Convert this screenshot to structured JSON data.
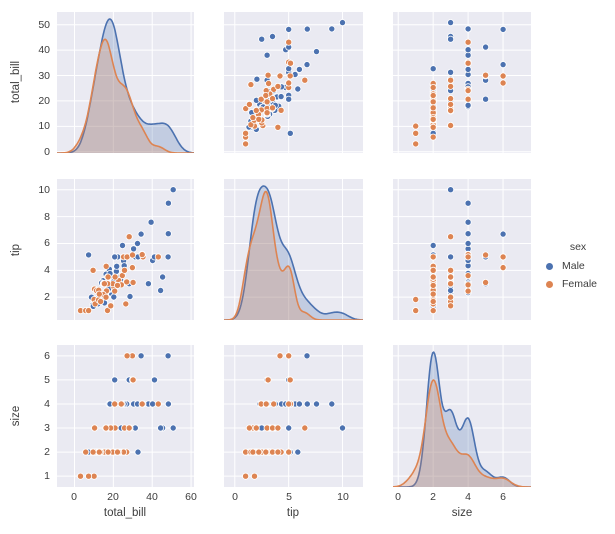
{
  "figure": {
    "background": "#ffffff",
    "panel_background": "#eaeaf2",
    "grid_color": "#ffffff"
  },
  "legend": {
    "title": "sex",
    "items": [
      {
        "label": "Male",
        "color": "#4c72b0"
      },
      {
        "label": "Female",
        "color": "#dd8452"
      }
    ]
  },
  "chart_data": {
    "type": "scatter",
    "subtype": "pairplot-with-kde-diagonal",
    "variables": [
      "total_bill",
      "tip",
      "size"
    ],
    "xlabels": [
      "total_bill",
      "tip",
      "size"
    ],
    "ylabels": [
      "total_bill",
      "tip",
      "size"
    ],
    "hue": {
      "name": "sex",
      "classes": [
        "Male",
        "Female"
      ],
      "colors": {
        "Male": "#4c72b0",
        "Female": "#dd8452"
      }
    },
    "axes": {
      "total_bill": {
        "x_ticks": [
          0,
          20,
          40,
          60
        ],
        "x_lim": [
          -9,
          61.5
        ],
        "y_ticks": [
          0,
          10,
          20,
          30,
          40,
          50
        ],
        "y_lim": [
          -0.5,
          55
        ]
      },
      "tip": {
        "x_ticks": [
          0,
          5,
          10
        ],
        "x_lim": [
          -1,
          11.9
        ],
        "y_ticks": [
          2,
          4,
          6,
          8,
          10
        ],
        "y_lim": [
          0.3,
          10.8
        ]
      },
      "size": {
        "x_ticks": [
          0,
          2,
          4,
          6
        ],
        "x_lim": [
          -0.3,
          7.6
        ],
        "y_ticks": [
          1,
          2,
          3,
          4,
          5,
          6
        ],
        "y_lim": [
          0.55,
          6.45
        ]
      }
    },
    "records_format": [
      "total_bill",
      "tip",
      "size",
      "sex"
    ],
    "records": [
      [
        10.34,
        1.66,
        3,
        "Male"
      ],
      [
        21.01,
        3.5,
        3,
        "Male"
      ],
      [
        23.68,
        3.31,
        2,
        "Male"
      ],
      [
        25.29,
        4.71,
        4,
        "Male"
      ],
      [
        8.77,
        2.0,
        2,
        "Male"
      ],
      [
        26.88,
        3.12,
        4,
        "Male"
      ],
      [
        15.04,
        1.96,
        2,
        "Male"
      ],
      [
        14.78,
        3.23,
        2,
        "Male"
      ],
      [
        10.27,
        1.71,
        2,
        "Male"
      ],
      [
        15.42,
        1.57,
        2,
        "Male"
      ],
      [
        18.43,
        3.0,
        4,
        "Male"
      ],
      [
        21.58,
        3.92,
        2,
        "Male"
      ],
      [
        16.29,
        3.71,
        3,
        "Male"
      ],
      [
        20.65,
        3.35,
        3,
        "Male"
      ],
      [
        17.92,
        4.08,
        2,
        "Male"
      ],
      [
        39.42,
        7.58,
        4,
        "Male"
      ],
      [
        19.82,
        3.18,
        2,
        "Male"
      ],
      [
        17.81,
        2.34,
        4,
        "Male"
      ],
      [
        13.37,
        2.0,
        2,
        "Male"
      ],
      [
        12.69,
        2.0,
        2,
        "Male"
      ],
      [
        21.7,
        4.3,
        2,
        "Male"
      ],
      [
        9.55,
        1.45,
        2,
        "Male"
      ],
      [
        18.35,
        2.5,
        4,
        "Male"
      ],
      [
        24.06,
        3.6,
        3,
        "Male"
      ],
      [
        16.31,
        2.0,
        3,
        "Male"
      ],
      [
        18.69,
        2.31,
        3,
        "Male"
      ],
      [
        31.27,
        5.0,
        3,
        "Male"
      ],
      [
        16.04,
        2.24,
        3,
        "Male"
      ],
      [
        17.46,
        2.54,
        2,
        "Male"
      ],
      [
        13.94,
        3.06,
        2,
        "Male"
      ],
      [
        9.68,
        1.32,
        2,
        "Male"
      ],
      [
        30.4,
        5.6,
        4,
        "Male"
      ],
      [
        22.23,
        5.0,
        2,
        "Male"
      ],
      [
        32.4,
        6.0,
        4,
        "Male"
      ],
      [
        28.55,
        2.05,
        3,
        "Male"
      ],
      [
        18.04,
        3.0,
        2,
        "Male"
      ],
      [
        12.54,
        2.5,
        2,
        "Male"
      ],
      [
        25.56,
        4.34,
        4,
        "Male"
      ],
      [
        19.49,
        3.51,
        2,
        "Male"
      ],
      [
        38.01,
        3.0,
        4,
        "Male"
      ],
      [
        11.24,
        1.76,
        2,
        "Male"
      ],
      [
        48.27,
        6.73,
        4,
        "Male"
      ],
      [
        20.29,
        3.21,
        2,
        "Male"
      ],
      [
        18.29,
        3.76,
        4,
        "Male"
      ],
      [
        17.59,
        2.64,
        3,
        "Male"
      ],
      [
        20.08,
        3.15,
        3,
        "Male"
      ],
      [
        20.23,
        2.01,
        2,
        "Male"
      ],
      [
        15.01,
        2.09,
        2,
        "Male"
      ],
      [
        50.81,
        10.0,
        3,
        "Male"
      ],
      [
        45.35,
        3.5,
        3,
        "Male"
      ],
      [
        44.3,
        2.5,
        3,
        "Male"
      ],
      [
        40.17,
        4.73,
        4,
        "Male"
      ],
      [
        48.33,
        9.0,
        4,
        "Male"
      ],
      [
        41.19,
        5.0,
        5,
        "Male"
      ],
      [
        20.69,
        5.0,
        5,
        "Male"
      ],
      [
        28.15,
        3.0,
        5,
        "Male"
      ],
      [
        34.3,
        6.7,
        6,
        "Male"
      ],
      [
        48.17,
        5.0,
        6,
        "Male"
      ],
      [
        7.25,
        5.15,
        2,
        "Male"
      ],
      [
        24.71,
        5.85,
        2,
        "Male"
      ],
      [
        32.68,
        5.0,
        2,
        "Male"
      ],
      [
        12.03,
        1.5,
        2,
        "Male"
      ],
      [
        16.99,
        1.01,
        2,
        "Female"
      ],
      [
        24.59,
        3.61,
        4,
        "Female"
      ],
      [
        35.26,
        5.0,
        4,
        "Female"
      ],
      [
        14.83,
        3.02,
        2,
        "Female"
      ],
      [
        10.33,
        1.67,
        3,
        "Female"
      ],
      [
        16.97,
        3.5,
        3,
        "Female"
      ],
      [
        20.29,
        2.75,
        2,
        "Female"
      ],
      [
        15.77,
        2.23,
        2,
        "Female"
      ],
      [
        19.65,
        3.0,
        2,
        "Female"
      ],
      [
        15.06,
        3.0,
        2,
        "Female"
      ],
      [
        20.69,
        2.45,
        4,
        "Female"
      ],
      [
        16.93,
        3.07,
        3,
        "Female"
      ],
      [
        10.29,
        2.6,
        2,
        "Female"
      ],
      [
        34.81,
        5.2,
        4,
        "Female"
      ],
      [
        26.41,
        1.5,
        2,
        "Female"
      ],
      [
        16.45,
        2.47,
        2,
        "Female"
      ],
      [
        3.07,
        1.0,
        1,
        "Female"
      ],
      [
        17.07,
        3.0,
        3,
        "Female"
      ],
      [
        26.86,
        3.14,
        2,
        "Female"
      ],
      [
        25.28,
        5.0,
        2,
        "Female"
      ],
      [
        14.73,
        2.2,
        2,
        "Female"
      ],
      [
        10.07,
        1.83,
        1,
        "Female"
      ],
      [
        34.83,
        5.17,
        4,
        "Female"
      ],
      [
        5.75,
        1.0,
        2,
        "Female"
      ],
      [
        16.32,
        4.3,
        2,
        "Female"
      ],
      [
        22.75,
        3.25,
        2,
        "Female"
      ],
      [
        11.35,
        2.5,
        2,
        "Female"
      ],
      [
        15.38,
        3.0,
        2,
        "Female"
      ],
      [
        43.11,
        5.0,
        4,
        "Female"
      ],
      [
        20.9,
        3.5,
        3,
        "Female"
      ],
      [
        25.71,
        4.0,
        3,
        "Female"
      ],
      [
        17.31,
        3.5,
        2,
        "Female"
      ],
      [
        10.65,
        1.5,
        2,
        "Female"
      ],
      [
        12.43,
        1.8,
        2,
        "Female"
      ],
      [
        24.08,
        2.92,
        4,
        "Female"
      ],
      [
        13.42,
        1.68,
        2,
        "Female"
      ],
      [
        12.48,
        2.52,
        2,
        "Female"
      ],
      [
        29.8,
        4.2,
        6,
        "Female"
      ],
      [
        27.05,
        5.0,
        6,
        "Female"
      ],
      [
        29.85,
        5.14,
        5,
        "Female"
      ],
      [
        30.14,
        3.09,
        5,
        "Female"
      ],
      [
        7.25,
        1.0,
        1,
        "Female"
      ],
      [
        18.64,
        1.36,
        3,
        "Female"
      ],
      [
        22.12,
        2.88,
        2,
        "Female"
      ],
      [
        12.76,
        2.23,
        2,
        "Female"
      ],
      [
        9.6,
        4.0,
        2,
        "Female"
      ],
      [
        16.21,
        2.0,
        3,
        "Female"
      ],
      [
        28.17,
        6.5,
        3,
        "Female"
      ]
    ]
  }
}
